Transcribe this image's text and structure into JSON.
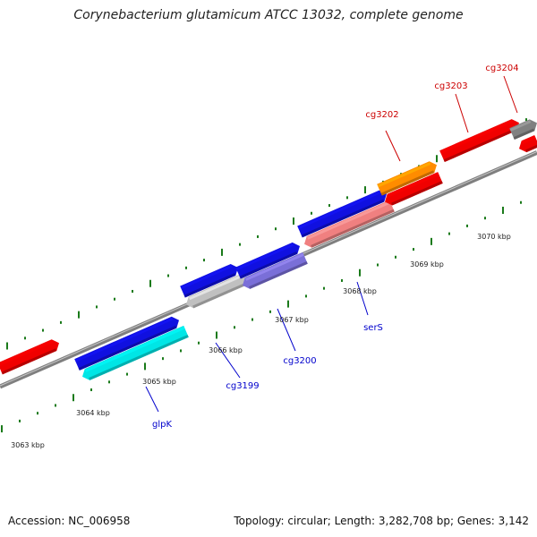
{
  "title": "Corynebacterium glutamicum ATCC 13032, complete genome",
  "footer": {
    "accession": "Accession: NC_006958",
    "topology": "Topology: circular",
    "length": "Length: 3,282,708 bp",
    "genes": "Genes: 3,142"
  },
  "colors": {
    "backbone": "#7f7f7f",
    "ticks": "#1a7a1a",
    "label_red": "#cc0000",
    "label_blue": "#0000cc",
    "tick_label": "#222222"
  },
  "scale": {
    "unit": "kbp",
    "labels": [
      "3063 kbp",
      "3064 kbp",
      "3065 kbp",
      "3066 kbp",
      "3067 kbp",
      "3068 kbp",
      "3069 kbp",
      "3070 kbp"
    ]
  },
  "features": [
    {
      "name": "",
      "strand": "+",
      "color": "#f00000"
    },
    {
      "name": "",
      "strand": "+",
      "color": "#1010e0"
    },
    {
      "name": "glpK",
      "strand": "-",
      "color": "#00e6e6"
    },
    {
      "name": "",
      "strand": "+",
      "color": "#1010e0"
    },
    {
      "name": "cg3199",
      "strand": "-",
      "color": "#c0c0c0"
    },
    {
      "name": "",
      "strand": "+",
      "color": "#1010e0"
    },
    {
      "name": "cg3200",
      "strand": "-",
      "color": "#7a6fd8"
    },
    {
      "name": "",
      "strand": "+",
      "color": "#1010e0"
    },
    {
      "name": "serS",
      "strand": "-",
      "color": "#f08080"
    },
    {
      "name": "cg3202",
      "strand": "+",
      "color": "#ff8c00"
    },
    {
      "name": "",
      "strand": "-",
      "color": "#f00000"
    },
    {
      "name": "cg3203",
      "strand": "+",
      "color": "#f00000"
    },
    {
      "name": "cg3204",
      "strand": "+",
      "color": "#808080"
    },
    {
      "name": "",
      "strand": "-",
      "color": "#f00000"
    }
  ]
}
